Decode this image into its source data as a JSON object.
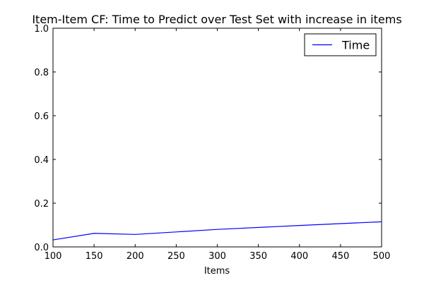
{
  "chart_data": {
    "type": "line",
    "title": "Item-Item CF: Time to Predict over Test Set with increase in items",
    "xlabel": "Items",
    "ylabel": "",
    "xlim": [
      100,
      500
    ],
    "ylim": [
      0.0,
      1.0
    ],
    "x_ticks": [
      100,
      150,
      200,
      250,
      300,
      350,
      400,
      450,
      500
    ],
    "x_tick_labels": [
      "100",
      "150",
      "200",
      "250",
      "300",
      "350",
      "400",
      "450",
      "500"
    ],
    "y_ticks": [
      0.0,
      0.2,
      0.4,
      0.6,
      0.8,
      1.0
    ],
    "y_tick_labels": [
      "0.0",
      "0.2",
      "0.4",
      "0.6",
      "0.8",
      "1.0"
    ],
    "grid": false,
    "legend_position": "top-right",
    "series": [
      {
        "name": "Time",
        "color": "#0000ff",
        "x": [
          100,
          150,
          200,
          300,
          400,
          500
        ],
        "y": [
          0.032,
          0.062,
          0.057,
          0.08,
          0.098,
          0.115
        ]
      }
    ]
  }
}
